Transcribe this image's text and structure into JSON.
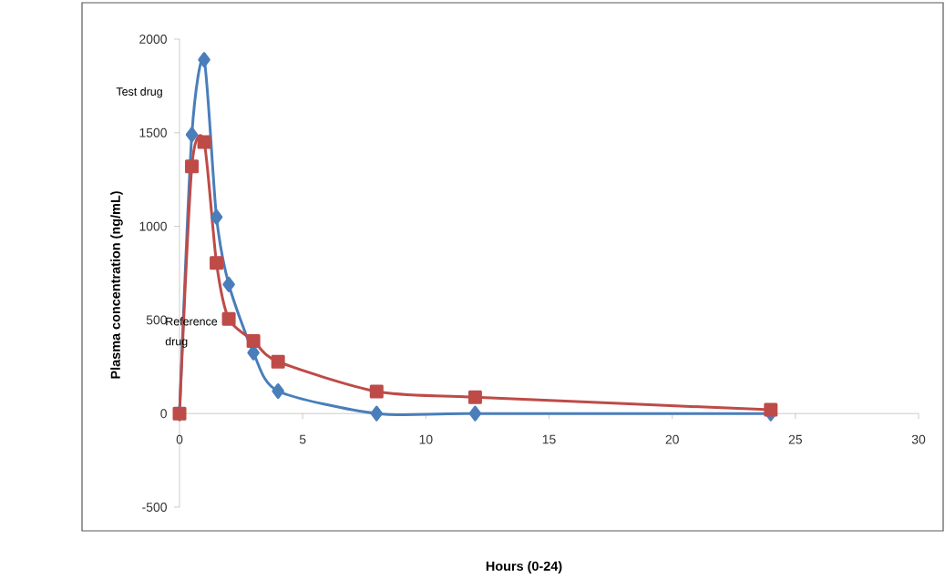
{
  "chart_data": {
    "type": "line",
    "xlabel": "Hours (0-24)",
    "ylabel": "Plasma concentration (ng/mL)",
    "xlim": [
      0,
      30
    ],
    "ylim": [
      -500,
      2000
    ],
    "xticks": [
      0,
      5,
      10,
      15,
      20,
      25,
      30
    ],
    "yticks": [
      -500,
      0,
      500,
      1000,
      1500,
      2000
    ],
    "grid": false,
    "legend": false,
    "line_style": "solid",
    "series": [
      {
        "name": "Test drug",
        "color": "#4a7ebb",
        "marker": "diamond",
        "x": [
          0,
          0.5,
          1,
          1.5,
          2,
          3,
          4,
          8,
          12,
          24
        ],
        "values": [
          0,
          1490,
          1890,
          1050,
          690,
          325,
          120,
          0,
          0,
          0
        ]
      },
      {
        "name": "Reference drug",
        "color": "#be4b48",
        "marker": "square",
        "x": [
          0,
          0.5,
          1,
          1.5,
          2,
          3,
          4,
          8,
          12,
          24
        ],
        "values": [
          0,
          1320,
          1450,
          805,
          505,
          388,
          277,
          118,
          87,
          20
        ]
      }
    ]
  }
}
